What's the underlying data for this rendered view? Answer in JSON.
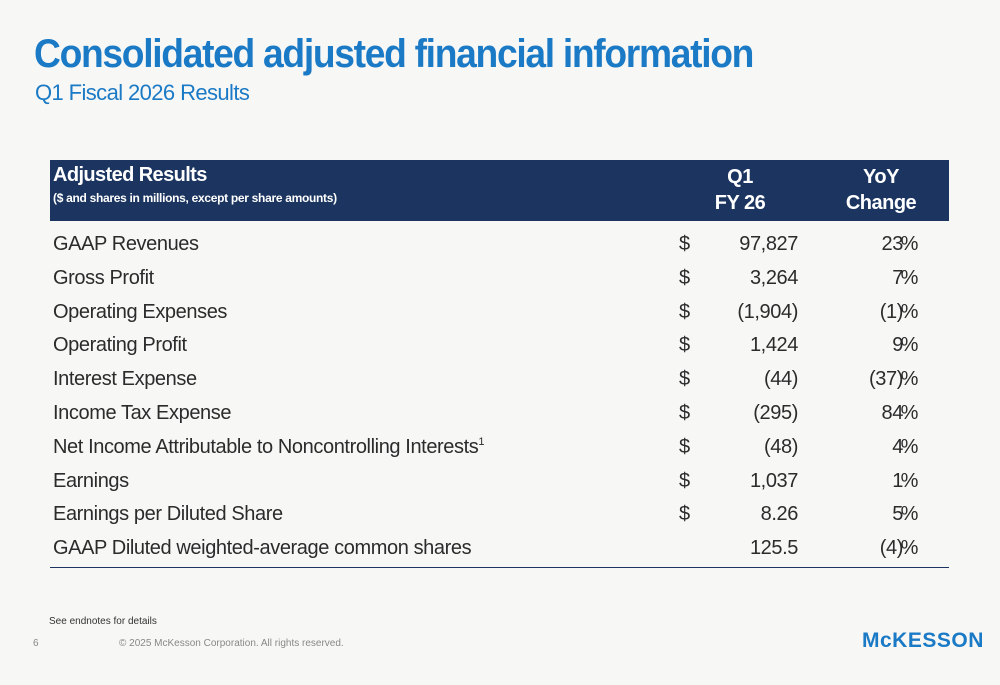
{
  "header": {
    "title": "Consolidated adjusted financial information",
    "subtitle": "Q1 Fiscal 2026 Results"
  },
  "table": {
    "header": {
      "title": "Adjusted Results",
      "subtitle": "($ and shares in millions, except per share amounts)",
      "col_q1_line1": "Q1",
      "col_q1_line2": "FY 26",
      "col_yoy_line1": "YoY",
      "col_yoy_line2": "Change"
    },
    "rows": [
      {
        "label": "GAAP Revenues",
        "sup": "",
        "currency": "$",
        "value": "97,827",
        "change": "23",
        "unit": "%"
      },
      {
        "label": "Gross Profit",
        "sup": "",
        "currency": "$",
        "value": "3,264",
        "change": "7",
        "unit": "%"
      },
      {
        "label": "Operating Expenses",
        "sup": "",
        "currency": "$",
        "value": "(1,904)",
        "change": "(1)",
        "unit": "%"
      },
      {
        "label": "Operating Profit",
        "sup": "",
        "currency": "$",
        "value": "1,424",
        "change": "9",
        "unit": "%"
      },
      {
        "label": "Interest Expense",
        "sup": "",
        "currency": "$",
        "value": "(44)",
        "change": "(37)",
        "unit": "%"
      },
      {
        "label": "Income Tax Expense",
        "sup": "",
        "currency": "$",
        "value": "(295)",
        "change": "84",
        "unit": "%"
      },
      {
        "label": "Net Income Attributable to Noncontrolling Interests",
        "sup": "1",
        "currency": "$",
        "value": "(48)",
        "change": "4",
        "unit": "%"
      },
      {
        "label": "Earnings",
        "sup": "",
        "currency": "$",
        "value": "1,037",
        "change": "1",
        "unit": "%"
      },
      {
        "label": "Earnings per Diluted Share",
        "sup": "",
        "currency": "$",
        "value": "8.26",
        "change": "5",
        "unit": "%"
      },
      {
        "label": "GAAP Diluted weighted-average common shares",
        "sup": "",
        "currency": "",
        "value": "125.5",
        "change": "(4)",
        "unit": "%"
      }
    ]
  },
  "footer": {
    "endnote": "See endnotes for details",
    "page_number": "6",
    "copyright": "© 2025 McKesson Corporation. All rights reserved.",
    "logo_text": "McKESSON"
  },
  "colors": {
    "title": "#1b7ac6",
    "header_band": "#1b3560",
    "background": "#f7f7f5"
  }
}
